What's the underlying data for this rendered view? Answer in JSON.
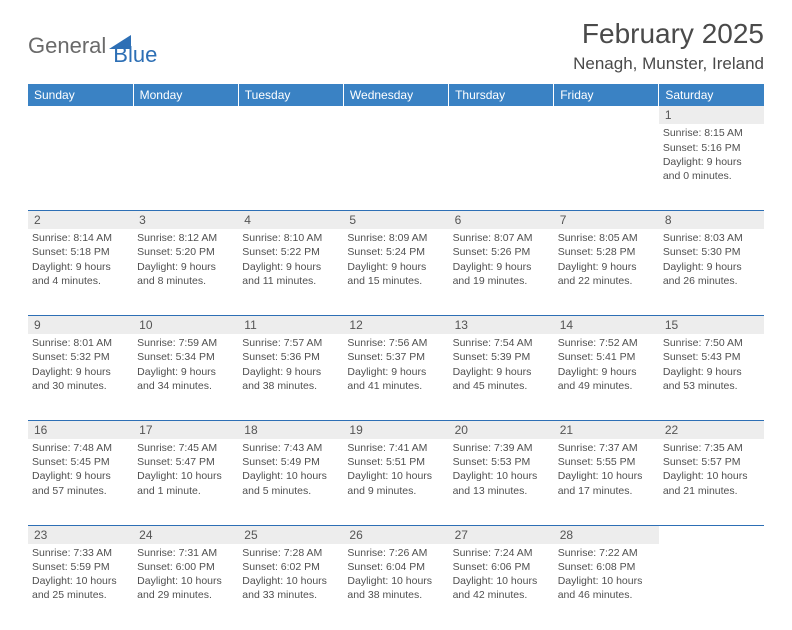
{
  "brand": {
    "part1": "General",
    "part2": "Blue"
  },
  "title": "February 2025",
  "location": "Nenagh, Munster, Ireland",
  "colors": {
    "header_bg": "#3a82c4",
    "border": "#2d6fb5",
    "daynum_bg": "#ededed",
    "text": "#505050",
    "brand_gray": "#6a6a6a",
    "brand_blue": "#2d6fb5"
  },
  "weekdays": [
    "Sunday",
    "Monday",
    "Tuesday",
    "Wednesday",
    "Thursday",
    "Friday",
    "Saturday"
  ],
  "weeks": [
    [
      null,
      null,
      null,
      null,
      null,
      null,
      {
        "n": "1",
        "sr": "8:15 AM",
        "ss": "5:16 PM",
        "dl": "9 hours and 0 minutes."
      }
    ],
    [
      {
        "n": "2",
        "sr": "8:14 AM",
        "ss": "5:18 PM",
        "dl": "9 hours and 4 minutes."
      },
      {
        "n": "3",
        "sr": "8:12 AM",
        "ss": "5:20 PM",
        "dl": "9 hours and 8 minutes."
      },
      {
        "n": "4",
        "sr": "8:10 AM",
        "ss": "5:22 PM",
        "dl": "9 hours and 11 minutes."
      },
      {
        "n": "5",
        "sr": "8:09 AM",
        "ss": "5:24 PM",
        "dl": "9 hours and 15 minutes."
      },
      {
        "n": "6",
        "sr": "8:07 AM",
        "ss": "5:26 PM",
        "dl": "9 hours and 19 minutes."
      },
      {
        "n": "7",
        "sr": "8:05 AM",
        "ss": "5:28 PM",
        "dl": "9 hours and 22 minutes."
      },
      {
        "n": "8",
        "sr": "8:03 AM",
        "ss": "5:30 PM",
        "dl": "9 hours and 26 minutes."
      }
    ],
    [
      {
        "n": "9",
        "sr": "8:01 AM",
        "ss": "5:32 PM",
        "dl": "9 hours and 30 minutes."
      },
      {
        "n": "10",
        "sr": "7:59 AM",
        "ss": "5:34 PM",
        "dl": "9 hours and 34 minutes."
      },
      {
        "n": "11",
        "sr": "7:57 AM",
        "ss": "5:36 PM",
        "dl": "9 hours and 38 minutes."
      },
      {
        "n": "12",
        "sr": "7:56 AM",
        "ss": "5:37 PM",
        "dl": "9 hours and 41 minutes."
      },
      {
        "n": "13",
        "sr": "7:54 AM",
        "ss": "5:39 PM",
        "dl": "9 hours and 45 minutes."
      },
      {
        "n": "14",
        "sr": "7:52 AM",
        "ss": "5:41 PM",
        "dl": "9 hours and 49 minutes."
      },
      {
        "n": "15",
        "sr": "7:50 AM",
        "ss": "5:43 PM",
        "dl": "9 hours and 53 minutes."
      }
    ],
    [
      {
        "n": "16",
        "sr": "7:48 AM",
        "ss": "5:45 PM",
        "dl": "9 hours and 57 minutes."
      },
      {
        "n": "17",
        "sr": "7:45 AM",
        "ss": "5:47 PM",
        "dl": "10 hours and 1 minute."
      },
      {
        "n": "18",
        "sr": "7:43 AM",
        "ss": "5:49 PM",
        "dl": "10 hours and 5 minutes."
      },
      {
        "n": "19",
        "sr": "7:41 AM",
        "ss": "5:51 PM",
        "dl": "10 hours and 9 minutes."
      },
      {
        "n": "20",
        "sr": "7:39 AM",
        "ss": "5:53 PM",
        "dl": "10 hours and 13 minutes."
      },
      {
        "n": "21",
        "sr": "7:37 AM",
        "ss": "5:55 PM",
        "dl": "10 hours and 17 minutes."
      },
      {
        "n": "22",
        "sr": "7:35 AM",
        "ss": "5:57 PM",
        "dl": "10 hours and 21 minutes."
      }
    ],
    [
      {
        "n": "23",
        "sr": "7:33 AM",
        "ss": "5:59 PM",
        "dl": "10 hours and 25 minutes."
      },
      {
        "n": "24",
        "sr": "7:31 AM",
        "ss": "6:00 PM",
        "dl": "10 hours and 29 minutes."
      },
      {
        "n": "25",
        "sr": "7:28 AM",
        "ss": "6:02 PM",
        "dl": "10 hours and 33 minutes."
      },
      {
        "n": "26",
        "sr": "7:26 AM",
        "ss": "6:04 PM",
        "dl": "10 hours and 38 minutes."
      },
      {
        "n": "27",
        "sr": "7:24 AM",
        "ss": "6:06 PM",
        "dl": "10 hours and 42 minutes."
      },
      {
        "n": "28",
        "sr": "7:22 AM",
        "ss": "6:08 PM",
        "dl": "10 hours and 46 minutes."
      },
      null
    ]
  ],
  "labels": {
    "sunrise": "Sunrise:",
    "sunset": "Sunset:",
    "daylight": "Daylight:"
  }
}
